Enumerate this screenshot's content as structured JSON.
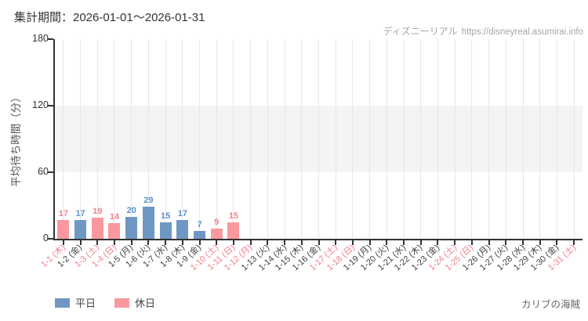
{
  "header": {
    "title": "集計期間：2026-01-01～2026-01-31",
    "watermark_brand": "ディズニーリアル",
    "watermark_url": "https://disneyreal.asumirai.info"
  },
  "footer": {
    "attraction": "カリブの海賊"
  },
  "legend": {
    "weekday_label": "平日",
    "holiday_label": "休日"
  },
  "colors": {
    "weekday_bar": "#6f97c4",
    "holiday_bar": "#f9999f",
    "weekday_text": "#5d8fc3",
    "holiday_text": "#f2828b",
    "red_axis_label": "#f28088",
    "dark_axis_label": "#3f3f3f",
    "gridline": "#e7e7e7",
    "band": "#f4f4f4",
    "axis": "#333333"
  },
  "chart_data": {
    "type": "bar",
    "title": "集計期間：2026-01-01～2026-01-31",
    "xlabel": "",
    "ylabel": "平均待ち時間（分）",
    "ylim": [
      0,
      180
    ],
    "yticks": [
      0,
      60,
      120,
      180
    ],
    "shaded_band_y": [
      60,
      120
    ],
    "grid": "vertical",
    "legend_entries": [
      "平日",
      "休日"
    ],
    "legend_position": "bottom-left",
    "days": [
      {
        "label": "1-1 (木)",
        "red": true,
        "value": 17,
        "kind": "holiday"
      },
      {
        "label": "1-2 (金)",
        "red": false,
        "value": 17,
        "kind": "weekday"
      },
      {
        "label": "1-3 (土)",
        "red": true,
        "value": 19,
        "kind": "holiday"
      },
      {
        "label": "1-4 (日)",
        "red": true,
        "value": 14,
        "kind": "holiday"
      },
      {
        "label": "1-5 (月)",
        "red": false,
        "value": 20,
        "kind": "weekday"
      },
      {
        "label": "1-6 (火)",
        "red": false,
        "value": 29,
        "kind": "weekday"
      },
      {
        "label": "1-7 (水)",
        "red": false,
        "value": 15,
        "kind": "weekday"
      },
      {
        "label": "1-8 (木)",
        "red": false,
        "value": 17,
        "kind": "weekday"
      },
      {
        "label": "1-9 (金)",
        "red": false,
        "value": 7,
        "kind": "weekday"
      },
      {
        "label": "1-10 (土)",
        "red": true,
        "value": 9,
        "kind": "holiday"
      },
      {
        "label": "1-11 (日)",
        "red": true,
        "value": 15,
        "kind": "holiday"
      },
      {
        "label": "1-12 (月)",
        "red": true,
        "value": null,
        "kind": null
      },
      {
        "label": "1-13 (火)",
        "red": false,
        "value": null,
        "kind": null
      },
      {
        "label": "1-14 (水)",
        "red": false,
        "value": null,
        "kind": null
      },
      {
        "label": "1-15 (木)",
        "red": false,
        "value": null,
        "kind": null
      },
      {
        "label": "1-16 (金)",
        "red": false,
        "value": null,
        "kind": null
      },
      {
        "label": "1-17 (土)",
        "red": true,
        "value": null,
        "kind": null
      },
      {
        "label": "1-18 (日)",
        "red": true,
        "value": null,
        "kind": null
      },
      {
        "label": "1-19 (月)",
        "red": false,
        "value": null,
        "kind": null
      },
      {
        "label": "1-20 (火)",
        "red": false,
        "value": null,
        "kind": null
      },
      {
        "label": "1-21 (水)",
        "red": false,
        "value": null,
        "kind": null
      },
      {
        "label": "1-22 (木)",
        "red": false,
        "value": null,
        "kind": null
      },
      {
        "label": "1-23 (金)",
        "red": false,
        "value": null,
        "kind": null
      },
      {
        "label": "1-24 (土)",
        "red": true,
        "value": null,
        "kind": null
      },
      {
        "label": "1-25 (日)",
        "red": true,
        "value": null,
        "kind": null
      },
      {
        "label": "1-26 (月)",
        "red": false,
        "value": null,
        "kind": null
      },
      {
        "label": "1-27 (火)",
        "red": false,
        "value": null,
        "kind": null
      },
      {
        "label": "1-28 (水)",
        "red": false,
        "value": null,
        "kind": null
      },
      {
        "label": "1-29 (木)",
        "red": false,
        "value": null,
        "kind": null
      },
      {
        "label": "1-30 (金)",
        "red": false,
        "value": null,
        "kind": null
      },
      {
        "label": "1-31 (土)",
        "red": true,
        "value": null,
        "kind": null
      }
    ]
  }
}
